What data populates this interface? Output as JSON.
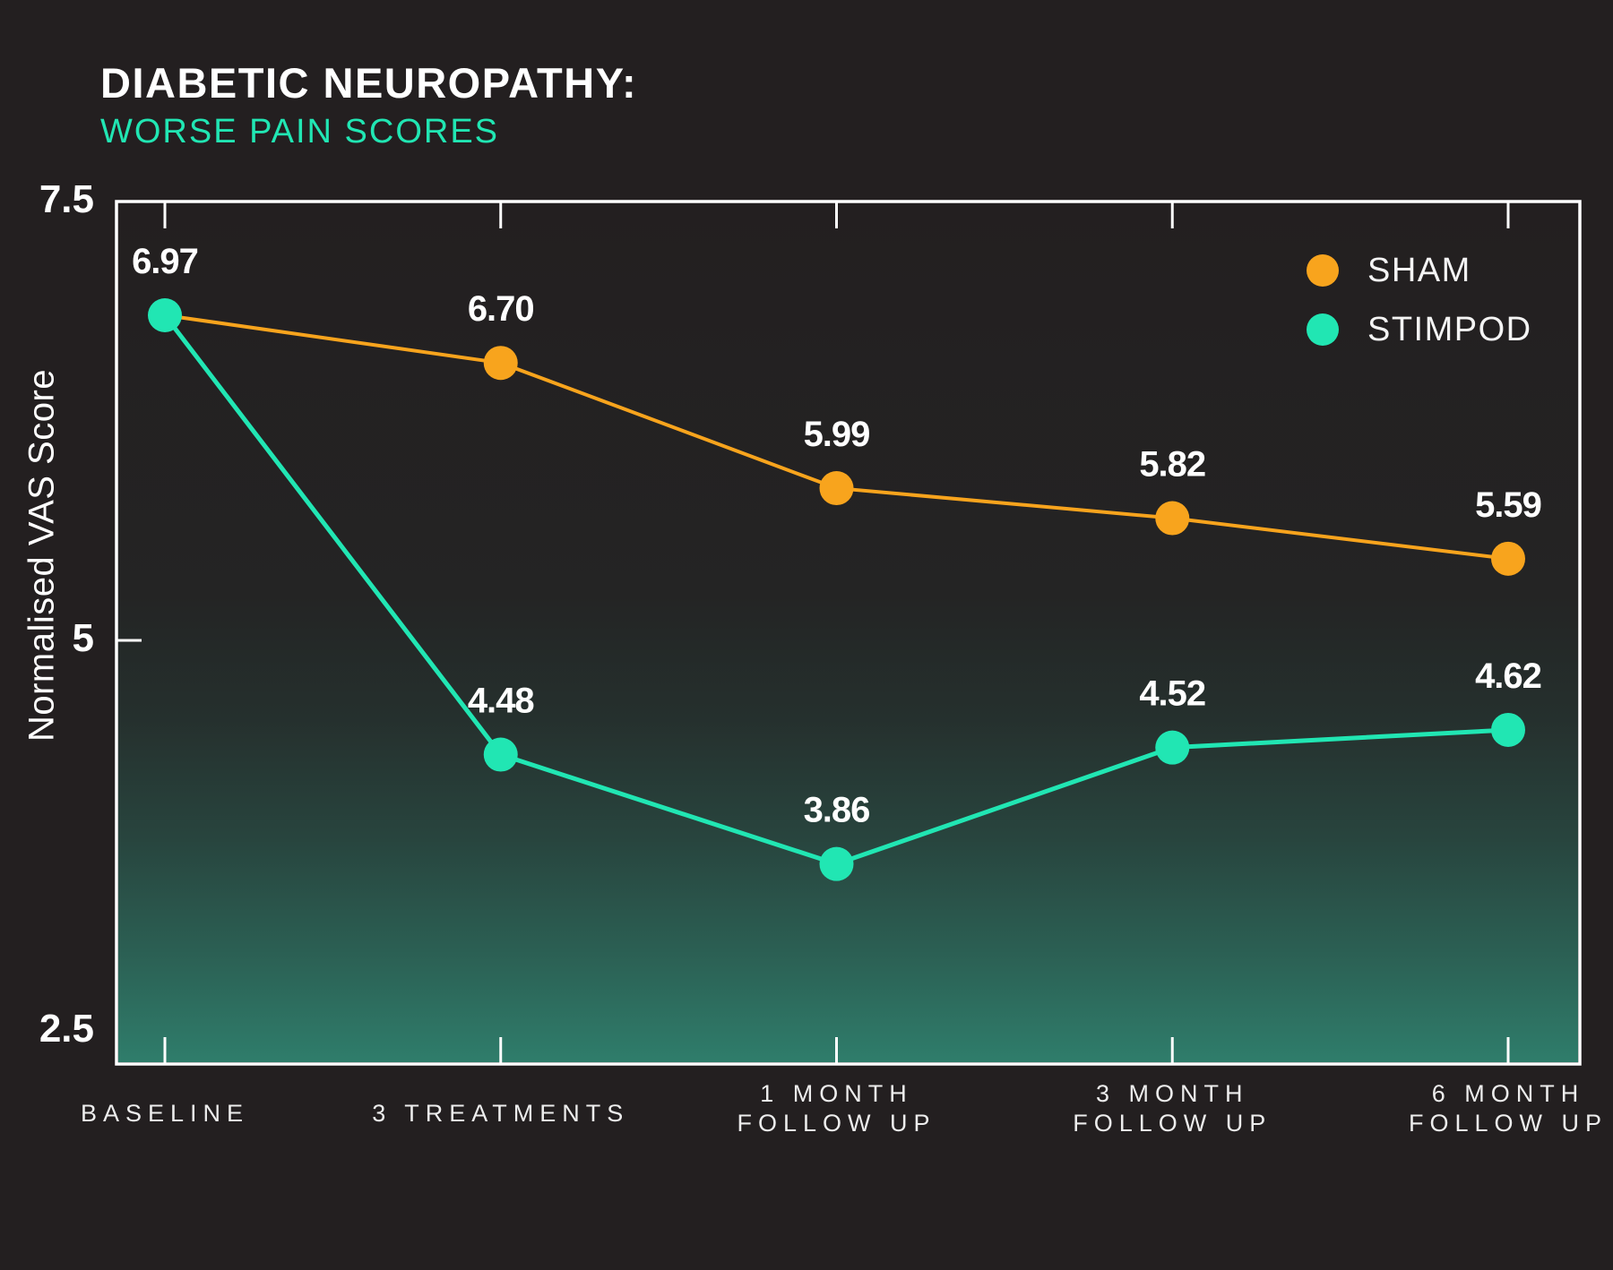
{
  "header": {
    "title": "DIABETIC NEUROPATHY:",
    "subtitle": "WORSE PAIN SCORES"
  },
  "colors": {
    "background": "#231F20",
    "frame": "#FFFFFF",
    "text": "#FFFFFF",
    "x_label_text": "#EDEDED",
    "subtitle_accent": "#21E6B3",
    "sham": "#F8A41D",
    "stimpod": "#21E6B3",
    "gradient_teal": "#2F7D6B"
  },
  "legend": {
    "items": [
      {
        "label": "SHAM",
        "color": "#F8A41D"
      },
      {
        "label": "STIMPOD",
        "color": "#21E6B3"
      }
    ]
  },
  "chart_data": {
    "type": "line",
    "title": "DIABETIC NEUROPATHY: WORSE PAIN SCORES",
    "categories": [
      "BASELINE",
      "3 TREATMENTS",
      "1 MONTH FOLLOW UP",
      "3 MONTH FOLLOW UP",
      "6 MONTH FOLLOW UP"
    ],
    "category_lines": [
      [
        "BASELINE"
      ],
      [
        "3 TREATMENTS"
      ],
      [
        "1 MONTH",
        "FOLLOW UP"
      ],
      [
        "3 MONTH",
        "FOLLOW UP"
      ],
      [
        "6 MONTH",
        "FOLLOW UP"
      ]
    ],
    "series": [
      {
        "name": "SHAM",
        "color": "#F8A41D",
        "values": [
          6.97,
          6.7,
          5.99,
          5.82,
          5.59
        ],
        "marker_at_first": false,
        "label_at_first": false
      },
      {
        "name": "STIMPOD",
        "color": "#21E6B3",
        "values": [
          6.97,
          4.48,
          3.86,
          4.52,
          4.62
        ],
        "marker_at_first": true,
        "label_at_first": true
      }
    ],
    "shared_baseline_value": 6.97,
    "value_labels": true,
    "ylabel": "Normalised VAS Score",
    "xlabel": "",
    "yticks": [
      "7.5",
      "5",
      "2.5"
    ],
    "ylim": [
      2.5,
      7.5
    ],
    "grid": false,
    "legend_position": "top-right",
    "background_gradient": "dark-to-teal-bottom"
  }
}
